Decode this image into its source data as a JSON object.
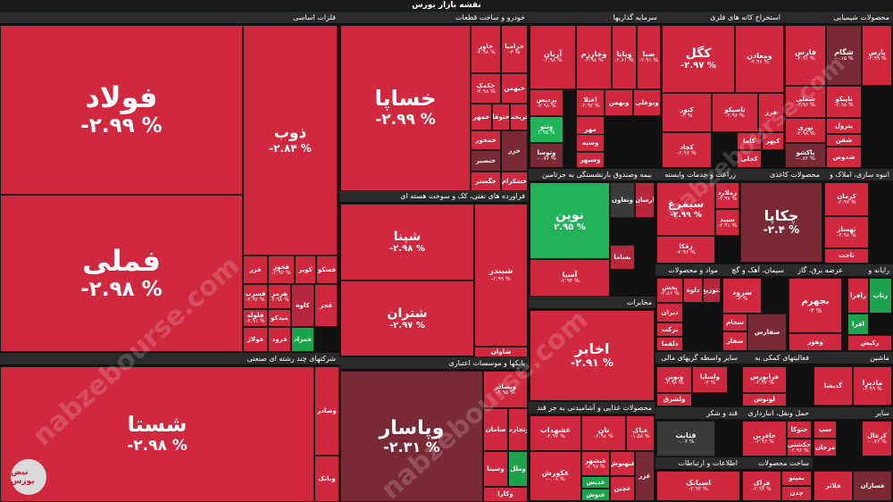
{
  "page": {
    "title": "نقشه بازار بورس"
  },
  "watermark": "nabzebourse.com",
  "logo": "نبض بورس",
  "colors": {
    "neg_strong": "#d0283f",
    "neg_mid": "#b7283d",
    "neg_dark": "#7a2a35",
    "neutral": "#3a3a3a",
    "pos": "#1ea24c",
    "pos_light": "#22b35a"
  },
  "chart_data": {
    "type": "heatmap",
    "title": "نقشه بازار بورس",
    "units": "%",
    "sectors": [
      {
        "id": "s1",
        "name": "فلزات اساسی"
      },
      {
        "id": "s2",
        "name": "خودرو و ساخت قطعات"
      },
      {
        "id": "s3",
        "name": "سرمایه گذاریها"
      },
      {
        "id": "s4",
        "name": "استخراج کانه های فلزی"
      },
      {
        "id": "s5",
        "name": "محصولات شیمیایی"
      },
      {
        "id": "s6",
        "name": "شرکتهای چند رشته ای صنعتی"
      },
      {
        "id": "s7",
        "name": "فراورده های نفتی، کک و سوخت هسته ای"
      },
      {
        "id": "s8",
        "name": "بانکها و موسسات اعتباری"
      },
      {
        "id": "s9",
        "name": "بیمه وصندوق بازنشستگی به جزتامین"
      },
      {
        "id": "s10",
        "name": "زراعت و خدمات وابسته"
      },
      {
        "id": "s11",
        "name": "انبوه سازی، املاک و"
      },
      {
        "id": "s12",
        "name": "محصولات کاغذی"
      },
      {
        "id": "s13",
        "name": "مواد و محصولات"
      },
      {
        "id": "s14",
        "name": "سیمان، آهک و گچ"
      },
      {
        "id": "s15",
        "name": "عرضه برق، گاز"
      },
      {
        "id": "s16",
        "name": "رایانه و"
      },
      {
        "id": "s17",
        "name": "مخابرات"
      },
      {
        "id": "s18",
        "name": "سایر واسطه گریهای مالی"
      },
      {
        "id": "s19",
        "name": "فعالیتهای کمکی به"
      },
      {
        "id": "s20",
        "name": "ماشین"
      },
      {
        "id": "s21",
        "name": "محصولات غذایی و آشامیدنی به جز قند"
      },
      {
        "id": "s22",
        "name": "قند و شکر"
      },
      {
        "id": "s23",
        "name": "حمل ونقل، انبارداری"
      },
      {
        "id": "s24",
        "name": "سایر"
      },
      {
        "id": "s25",
        "name": "اطلاعات و ارتباطات"
      },
      {
        "id": "s26",
        "name": "ساخت محصولات"
      }
    ],
    "cells": [
      {
        "sector": "s1",
        "symbol": "فولاد",
        "change": "-۲.۹۹ %"
      },
      {
        "sector": "s1",
        "symbol": "فملی",
        "change": "-۲.۹۸ %"
      },
      {
        "sector": "s1",
        "symbol": "ذوب",
        "change": "-۲.۸۴ %"
      },
      {
        "sector": "s1",
        "symbol": "فزر",
        "change": ""
      },
      {
        "sector": "s1",
        "symbol": "فخوز",
        "change": "-۲.۹۲ %"
      },
      {
        "sector": "s1",
        "symbol": "کویر",
        "change": ""
      },
      {
        "sector": "s1",
        "symbol": "فسکو",
        "change": ""
      },
      {
        "sector": "s1",
        "symbol": "فسرب",
        "change": "-۲.۹۲ %"
      },
      {
        "sector": "s1",
        "symbol": "هرمز",
        "change": "-۲.۹۸ %"
      },
      {
        "sector": "s1",
        "symbol": "فلوله",
        "change": "-۲.۹۱ %"
      },
      {
        "sector": "s1",
        "symbol": "میدکو",
        "change": ""
      },
      {
        "sector": "s1",
        "symbol": "کاوه",
        "change": ""
      },
      {
        "sector": "s1",
        "symbol": "فجر",
        "change": ""
      },
      {
        "sector": "s1",
        "symbol": "فولاژ",
        "change": ""
      },
      {
        "sector": "s1",
        "symbol": "فرود",
        "change": ""
      },
      {
        "sector": "s1",
        "symbol": "فمراد",
        "change": ""
      },
      {
        "sector": "s2",
        "symbol": "خساپا",
        "change": "-۲.۹۹ %"
      },
      {
        "sector": "s2",
        "symbol": "خاور",
        "change": "-۲.۹۸ %"
      },
      {
        "sector": "s2",
        "symbol": "خزامیا",
        "change": "-۳ %"
      },
      {
        "sector": "s2",
        "symbol": "خکمک",
        "change": "-۲.۹۸ %"
      },
      {
        "sector": "s2",
        "symbol": "خپارس",
        "change": ""
      },
      {
        "sector": "s2",
        "symbol": "خبهمن",
        "change": ""
      },
      {
        "sector": "s2",
        "symbol": "خمهر",
        "change": ""
      },
      {
        "sector": "s2",
        "symbol": "ختوقا",
        "change": ""
      },
      {
        "sector": "s2",
        "symbol": "خریخت",
        "change": ""
      },
      {
        "sector": "s2",
        "symbol": "خمحور",
        "change": ""
      },
      {
        "sector": "s2",
        "symbol": "خنصیر",
        "change": ""
      },
      {
        "sector": "s2",
        "symbol": "خزر",
        "change": ""
      },
      {
        "sector": "s2",
        "symbol": "خگستر",
        "change": ""
      },
      {
        "sector": "s2",
        "symbol": "خشکرام",
        "change": ""
      },
      {
        "sector": "s3",
        "symbol": "آریان",
        "change": "-۲.۹۸ %"
      },
      {
        "sector": "s3",
        "symbol": "وخارزم",
        "change": "-۲.۹۸ %"
      },
      {
        "sector": "s3",
        "symbol": "وپایا",
        "change": "-۲.۶۱ %"
      },
      {
        "sector": "s3",
        "symbol": "صبا",
        "change": "-۲.۹۱ %"
      },
      {
        "sector": "s3",
        "symbol": "پردیس",
        "change": "-۲.۹۸ %"
      },
      {
        "sector": "s3",
        "symbol": "اعتلا",
        "change": "-۲.۹۲ %"
      },
      {
        "sector": "s3",
        "symbol": "وبهمن",
        "change": ""
      },
      {
        "sector": "s3",
        "symbol": "وبوعلی",
        "change": ""
      },
      {
        "sector": "s3",
        "symbol": "وثنو",
        "change": "۲.۹۵ %"
      },
      {
        "sector": "s3",
        "symbol": "مهر",
        "change": ""
      },
      {
        "sector": "s3",
        "symbol": "وتوسا",
        "change": "-۰.۷۶ %"
      },
      {
        "sector": "s3",
        "symbol": "وسپه",
        "change": ""
      },
      {
        "sector": "s3",
        "symbol": "وسپهر",
        "change": ""
      },
      {
        "sector": "s4",
        "symbol": "کگل",
        "change": "-۲.۹۷ %"
      },
      {
        "sector": "s4",
        "symbol": "ومعادن",
        "change": "-۲.۹۶ %"
      },
      {
        "sector": "s4",
        "symbol": "کنور",
        "change": "-۳ %"
      },
      {
        "sector": "s4",
        "symbol": "تاصیکو",
        "change": "-۲.۹۶ %"
      },
      {
        "sector": "s4",
        "symbol": "فرز",
        "change": ""
      },
      {
        "sector": "s4",
        "symbol": "کچاد",
        "change": "-۲.۹۶ %"
      },
      {
        "sector": "s4",
        "symbol": "کاما",
        "change": ""
      },
      {
        "sector": "s4",
        "symbol": "کپهر",
        "change": ""
      },
      {
        "sector": "s4",
        "symbol": "کجلی",
        "change": ""
      },
      {
        "sector": "s5",
        "symbol": "فارس",
        "change": "-۲.۹۱ %"
      },
      {
        "sector": "s5",
        "symbol": "شگام",
        "change": "-۰.۱۵ %"
      },
      {
        "sector": "s5",
        "symbol": "پارس",
        "change": "-۲.۹۹ %"
      },
      {
        "sector": "s5",
        "symbol": "شملی",
        "change": "-۲.۹۶ %"
      },
      {
        "sector": "s5",
        "symbol": "تاپیکو",
        "change": "-۲.۹۸ %"
      },
      {
        "sector": "s5",
        "symbol": "نوری",
        "change": "-۲.۹۸ %"
      },
      {
        "sector": "s5",
        "symbol": "پترول",
        "change": ""
      },
      {
        "sector": "s5",
        "symbol": "شفن",
        "change": ""
      },
      {
        "sector": "s5",
        "symbol": "شدوص",
        "change": ""
      },
      {
        "sector": "s5",
        "symbol": "پاکشو",
        "change": "-۰.۸۲ %"
      },
      {
        "sector": "s6",
        "symbol": "شستا",
        "change": "-۲.۹۸ %"
      },
      {
        "sector": "s6",
        "symbol": "وصادر",
        "change": ""
      },
      {
        "sector": "s6",
        "symbol": "وبانک",
        "change": ""
      },
      {
        "sector": "s7",
        "symbol": "شپنا",
        "change": "-۲.۹۸ %"
      },
      {
        "sector": "s7",
        "symbol": "شتران",
        "change": "-۲.۹۷ %"
      },
      {
        "sector": "s7",
        "symbol": "شبندر",
        "change": "-۲.۹۹ %"
      },
      {
        "sector": "s7",
        "symbol": "شاوان",
        "change": ""
      },
      {
        "sector": "s8",
        "symbol": "وپاسار",
        "change": "-۲.۳۱ %"
      },
      {
        "sector": "s8",
        "symbol": "وبصادر",
        "change": "-۲.۹۵ %"
      },
      {
        "sector": "s8",
        "symbol": "وخاور",
        "change": ""
      },
      {
        "sector": "s8",
        "symbol": "وتجارت",
        "change": ""
      },
      {
        "sector": "s8",
        "symbol": "وسینا",
        "change": ""
      },
      {
        "sector": "s8",
        "symbol": "وملل",
        "change": ""
      },
      {
        "sector": "s8",
        "symbol": "وکارا",
        "change": ""
      },
      {
        "sector": "s8",
        "symbol": "سامان",
        "change": ""
      },
      {
        "sector": "s9",
        "symbol": "نوین",
        "change": "۲.۹۵ %"
      },
      {
        "sector": "s9",
        "symbol": "وتعاون",
        "change": ""
      },
      {
        "sector": "s9",
        "symbol": "ارسان",
        "change": ""
      },
      {
        "sector": "s9",
        "symbol": "بساما",
        "change": ""
      },
      {
        "sector": "s9",
        "symbol": "آسیا",
        "change": "-۲.۹۴ %"
      },
      {
        "sector": "s10",
        "symbol": "سیمرغ",
        "change": "-۲.۹۹ %"
      },
      {
        "sector": "s10",
        "symbol": "زملارد",
        "change": "-۲.۹۷ %"
      },
      {
        "sector": "s10",
        "symbol": "سپید",
        "change": "-۲.۹۱ %"
      },
      {
        "sector": "s10",
        "symbol": "زقکا",
        "change": "-۲.۹۶ %"
      },
      {
        "sector": "s11",
        "symbol": "کرمان",
        "change": "-۲.۹۷ %"
      },
      {
        "sector": "s11",
        "symbol": "ثهساز",
        "change": "-۲.۹۸ %"
      },
      {
        "sector": "s11",
        "symbol": "ثاخت",
        "change": ""
      },
      {
        "sector": "s12",
        "symbol": "چکاپا",
        "change": "-۲.۴ %"
      },
      {
        "sector": "s13",
        "symbol": "پخش",
        "change": "-۲.۸۶ %"
      },
      {
        "sector": "s13",
        "symbol": "دلوه",
        "change": ""
      },
      {
        "sector": "s13",
        "symbol": "دتوزیع",
        "change": ""
      },
      {
        "sector": "s13",
        "symbol": "دیران",
        "change": ""
      },
      {
        "sector": "s13",
        "symbol": "برکت",
        "change": ""
      },
      {
        "sector": "s13",
        "symbol": "دلقما",
        "change": ""
      },
      {
        "sector": "s14",
        "symbol": "سرود",
        "change": "-۳ %"
      },
      {
        "sector": "s14",
        "symbol": "سجام",
        "change": ""
      },
      {
        "sector": "s14",
        "symbol": "سفار",
        "change": ""
      },
      {
        "sector": "s14",
        "symbol": "سفارس",
        "change": ""
      },
      {
        "sector": "s15",
        "symbol": "بجهرم",
        "change": "-۳ %"
      },
      {
        "sector": "s15",
        "symbol": "وهور",
        "change": ""
      },
      {
        "sector": "s16",
        "symbol": "رتاپ",
        "change": ""
      },
      {
        "sector": "s16",
        "symbol": "رافزا",
        "change": ""
      },
      {
        "sector": "s16",
        "symbol": "افرا",
        "change": ""
      },
      {
        "sector": "s16",
        "symbol": "رکیش",
        "change": ""
      },
      {
        "sector": "s17",
        "symbol": "اخابر",
        "change": "-۲.۹۱ %"
      },
      {
        "sector": "s18",
        "symbol": "ونوین",
        "change": "-۲.۹۸ %"
      },
      {
        "sector": "s18",
        "symbol": "ولساپا",
        "change": "-۳ %"
      },
      {
        "sector": "s18",
        "symbol": "ولشرق",
        "change": ""
      },
      {
        "sector": "s19",
        "symbol": "فرابورس",
        "change": "-۲.۹۲ %"
      },
      {
        "sector": "s19",
        "symbol": "لوتوس",
        "change": ""
      },
      {
        "sector": "s20",
        "symbol": "مادیرا",
        "change": "-۲.۹۹ %"
      },
      {
        "sector": "s20",
        "symbol": "گدیشا",
        "change": ""
      },
      {
        "sector": "s21",
        "symbol": "غشهداب",
        "change": "-۲.۹۷ %"
      },
      {
        "sector": "s21",
        "symbol": "نان",
        "change": "-۲.۹۸ %"
      },
      {
        "sector": "s21",
        "symbol": "غپاک",
        "change": "-۱.۵۸ %"
      },
      {
        "sector": "s21",
        "symbol": "غبشهر",
        "change": "-۲.۹۷ %"
      },
      {
        "sector": "s21",
        "symbol": "غکورش",
        "change": "-۰.۰۸ %"
      },
      {
        "sector": "s21",
        "symbol": "غبهنوش",
        "change": ""
      },
      {
        "sector": "s21",
        "symbol": "غدیس",
        "change": ""
      },
      {
        "sector": "s21",
        "symbol": "غچین",
        "change": ""
      },
      {
        "sector": "s21",
        "symbol": "غنوش",
        "change": ""
      },
      {
        "sector": "s21",
        "symbol": "غزر",
        "change": ""
      },
      {
        "sector": "s22",
        "symbol": "قثابت",
        "change": "۰.۰۶ %"
      },
      {
        "sector": "s23",
        "symbol": "حافرین",
        "change": "-۲.۹۶ %"
      },
      {
        "sector": "s23",
        "symbol": "حتوکا",
        "change": ""
      },
      {
        "sector": "s23",
        "symbol": "حکشتی",
        "change": "-۲.۹۶ %"
      },
      {
        "sector": "s24",
        "symbol": "کزغال",
        "change": "-۰.۷۶ %"
      },
      {
        "sector": "s24",
        "symbol": "سپ",
        "change": ""
      },
      {
        "sector": "s24",
        "symbol": "مرجان",
        "change": ""
      },
      {
        "sector": "s25",
        "symbol": "اسیاتک",
        "change": "-۲.۹۴ %"
      },
      {
        "sector": "s26",
        "symbol": "فراک",
        "change": "-۲.۹۶ %"
      },
      {
        "sector": "s26",
        "symbol": "بمپنو",
        "change": ""
      },
      {
        "sector": "s26",
        "symbol": "چدن",
        "change": ""
      },
      {
        "sector": "s26",
        "symbol": "فلاتر",
        "change": ""
      },
      {
        "sector": "s26",
        "symbol": "فسازان",
        "change": ""
      }
    ]
  }
}
